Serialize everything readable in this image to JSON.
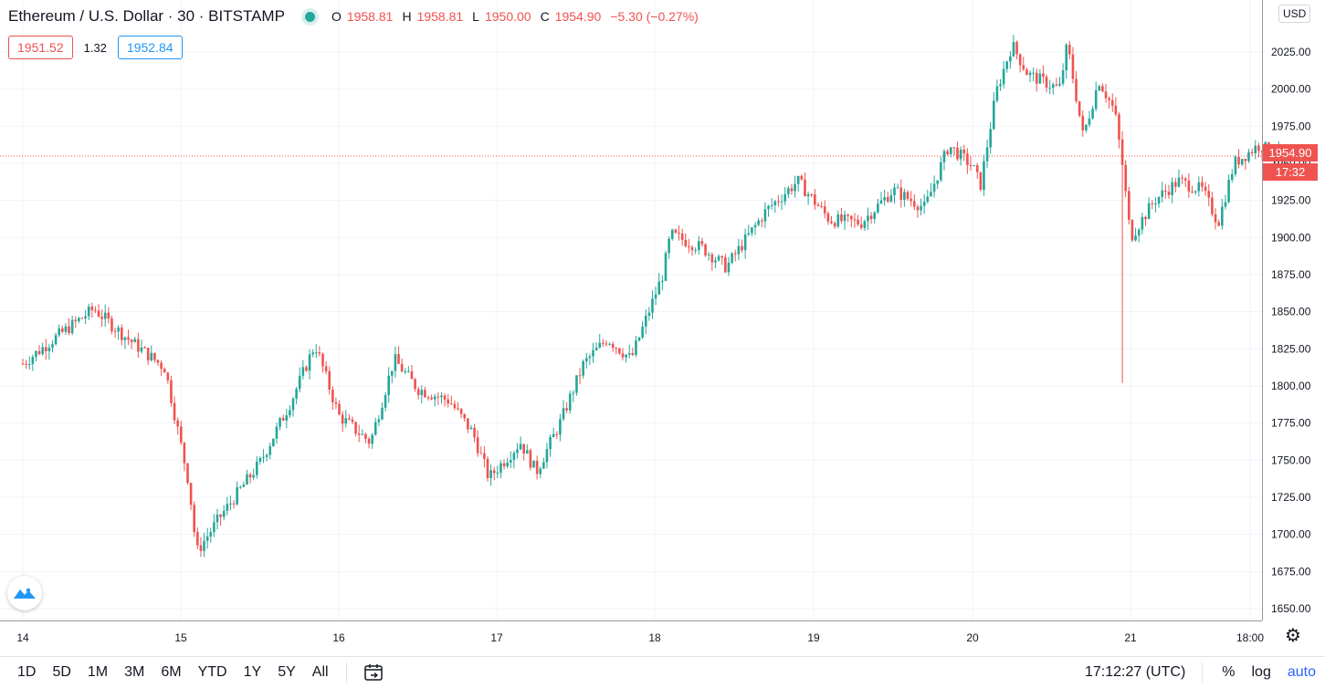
{
  "legend": {
    "symbol": "Ethereum / U.S. Dollar · 30 · BITSTAMP",
    "o_label": "O",
    "o_value": "1958.81",
    "h_label": "H",
    "h_value": "1958.81",
    "l_label": "L",
    "l_value": "1950.00",
    "c_label": "C",
    "c_value": "1954.90",
    "change": "−5.30 (−0.27%)"
  },
  "quotes": {
    "bid": "1951.52",
    "spread": "1.32",
    "ask": "1952.84"
  },
  "price_axis": {
    "currency": "USD",
    "last_price": "1954.90",
    "countdown": "17:32"
  },
  "toolbar": {
    "timeframes": [
      "1D",
      "5D",
      "1M",
      "3M",
      "6M",
      "YTD",
      "1Y",
      "5Y",
      "All"
    ],
    "clock": "17:12:27 (UTC)",
    "percent": "%",
    "log": "log",
    "auto": "auto"
  },
  "colors": {
    "up": "#26a69a",
    "down": "#ef5350",
    "grid": "#f0f3fa",
    "accent": "#2962ff"
  },
  "chart_data": {
    "type": "candlestick",
    "interval": "30",
    "x_tick_labels": [
      "14",
      "15",
      "16",
      "17",
      "18",
      "19",
      "20",
      "21",
      "18:00"
    ],
    "y_tick_labels": [
      "1650.00",
      "1675.00",
      "1700.00",
      "1725.00",
      "1750.00",
      "1775.00",
      "1800.00",
      "1825.00",
      "1850.00",
      "1875.00",
      "1900.00",
      "1925.00",
      "1950.00",
      "1975.00",
      "2000.00",
      "2025.00"
    ],
    "y_ticks": [
      1650,
      1675,
      1700,
      1725,
      1750,
      1775,
      1800,
      1825,
      1850,
      1875,
      1900,
      1925,
      1950,
      1975,
      2000,
      2025
    ],
    "ylim": [
      1642,
      2060
    ],
    "grid": true,
    "last_price": 1954.9,
    "path": [
      [
        0,
        1815
      ],
      [
        0.2,
        1832
      ],
      [
        0.45,
        1852
      ],
      [
        0.65,
        1833
      ],
      [
        0.9,
        1812
      ],
      [
        1.05,
        1735
      ],
      [
        1.1,
        1688
      ],
      [
        1.25,
        1712
      ],
      [
        1.5,
        1748
      ],
      [
        1.7,
        1790
      ],
      [
        1.85,
        1828
      ],
      [
        2.0,
        1780
      ],
      [
        2.2,
        1762
      ],
      [
        2.35,
        1818
      ],
      [
        2.5,
        1798
      ],
      [
        2.7,
        1790
      ],
      [
        2.85,
        1768
      ],
      [
        2.95,
        1738
      ],
      [
        3.15,
        1762
      ],
      [
        3.25,
        1742
      ],
      [
        3.4,
        1775
      ],
      [
        3.55,
        1815
      ],
      [
        3.7,
        1832
      ],
      [
        3.85,
        1818
      ],
      [
        4.05,
        1875
      ],
      [
        4.1,
        1902
      ],
      [
        4.3,
        1893
      ],
      [
        4.45,
        1880
      ],
      [
        4.7,
        1918
      ],
      [
        4.9,
        1938
      ],
      [
        5.1,
        1912
      ],
      [
        5.3,
        1910
      ],
      [
        5.5,
        1932
      ],
      [
        5.7,
        1920
      ],
      [
        5.85,
        1962
      ],
      [
        6.0,
        1948
      ],
      [
        6.05,
        1935
      ],
      [
        6.15,
        1998
      ],
      [
        6.25,
        2030
      ],
      [
        6.35,
        2010
      ],
      [
        6.55,
        2000
      ],
      [
        6.6,
        2030
      ],
      [
        6.7,
        1968
      ],
      [
        6.8,
        2006
      ],
      [
        6.9,
        1985
      ],
      [
        6.95,
        1948
      ],
      [
        7.0,
        1900
      ],
      [
        7.15,
        1925
      ],
      [
        7.3,
        1938
      ],
      [
        7.45,
        1932
      ],
      [
        7.55,
        1910
      ],
      [
        7.65,
        1950
      ],
      [
        7.8,
        1962
      ],
      [
        7.95,
        1955
      ]
    ],
    "spikes": [
      {
        "x": 6.94,
        "low": 1802
      }
    ]
  }
}
